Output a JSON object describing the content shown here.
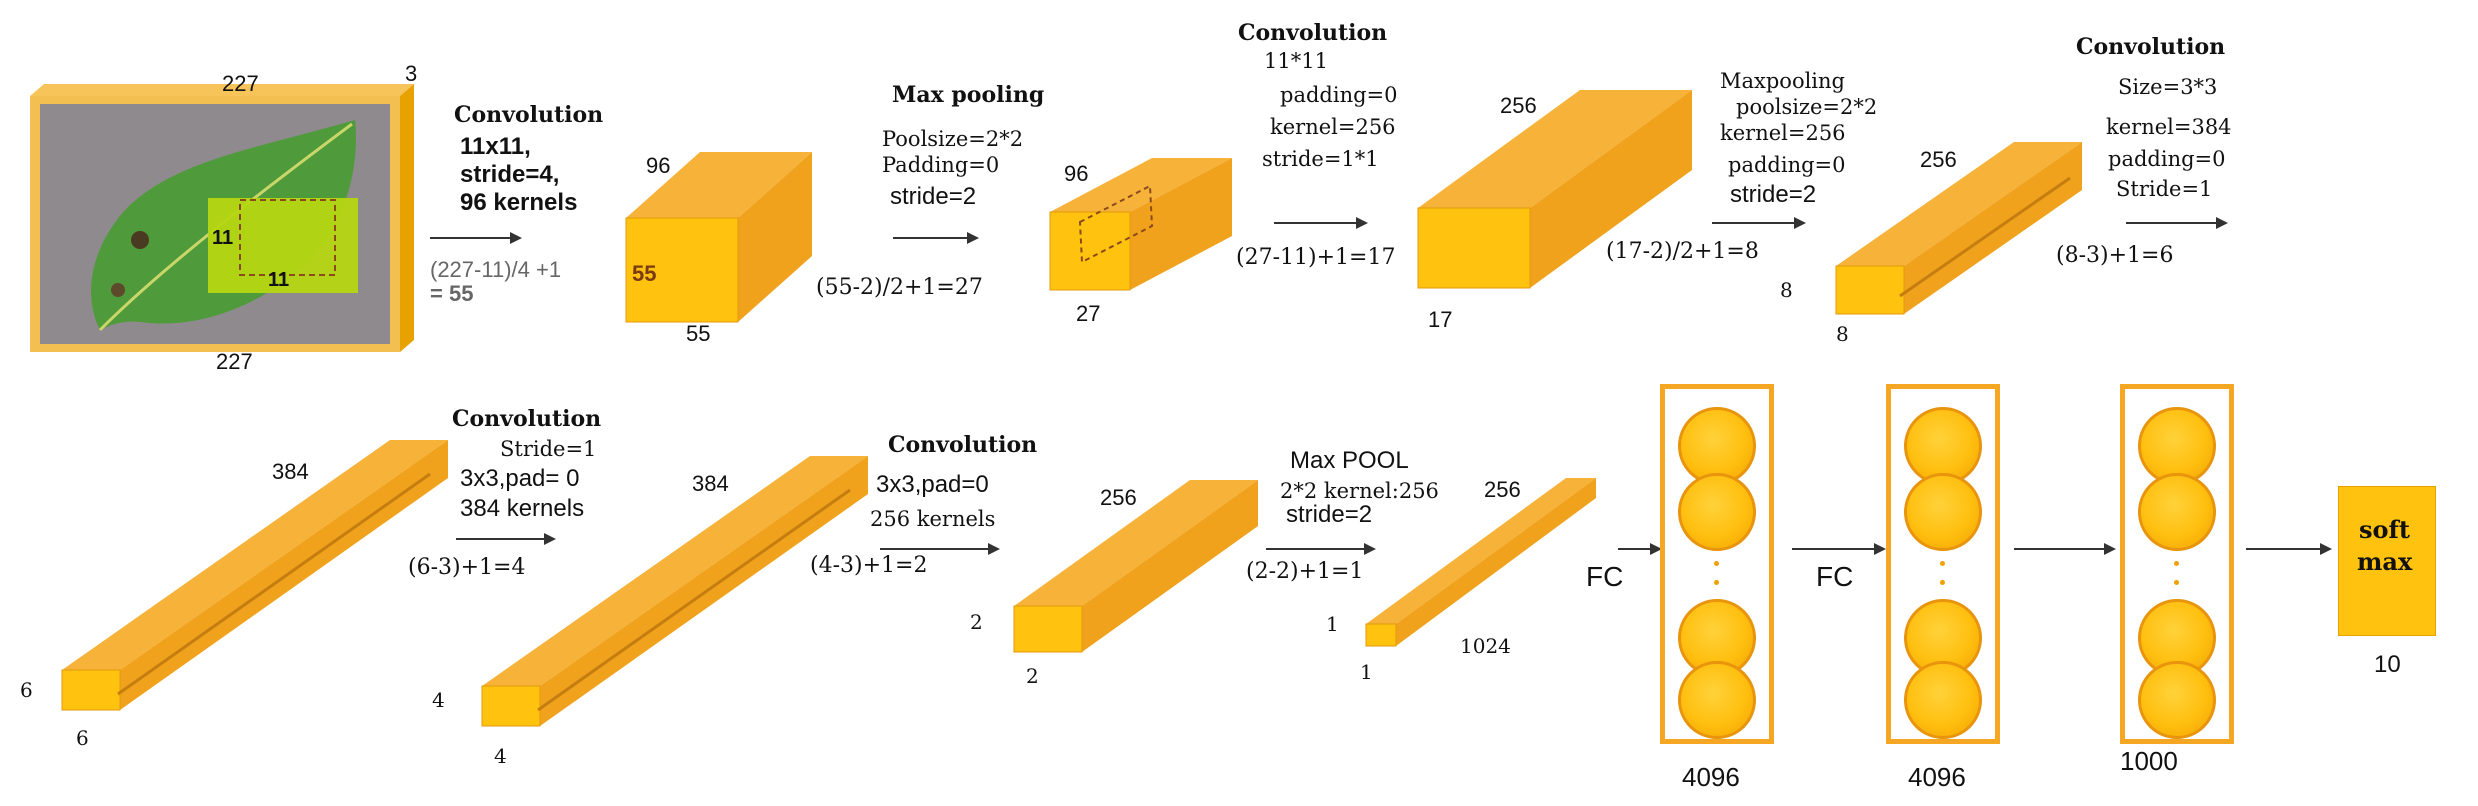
{
  "input": {
    "size_top": "227",
    "depth": "3",
    "size_bottom": "227",
    "filter_h": "11",
    "filter_w": "11"
  },
  "conv1": {
    "title": "Convolution",
    "line1": "11x11,",
    "line2": "stride=4,",
    "line3": "96 kernels",
    "formula1": "(227-11)/4 +1",
    "formula2": "= 55"
  },
  "block1": {
    "depth": "96",
    "front": "55",
    "bottom": "55"
  },
  "pool1": {
    "title": "Max pooling",
    "line1": "Poolsize=2*2",
    "line2": "Padding=0",
    "line3": "stride=2",
    "formula": "(55-2)/2+1=27"
  },
  "block2": {
    "depth": "96",
    "bottom": "27"
  },
  "conv2": {
    "title": "Convolution",
    "line1": "11*11",
    "line2": "padding=0",
    "line3": "kernel=256",
    "line4": "stride=1*1",
    "formula": "(27-11)+1=17"
  },
  "block3": {
    "depth": "256",
    "bottom": "17"
  },
  "pool2": {
    "title": "Maxpooling",
    "line1": "poolsize=2*2",
    "line2": "kernel=256",
    "line3": "padding=0",
    "line4": "stride=2",
    "formula": "(17-2)/2+1=8"
  },
  "block4": {
    "depth": "256",
    "side": "8",
    "bottom": "8"
  },
  "conv3": {
    "title": "Convolution",
    "line1": "Size=3*3",
    "line2": "kernel=384",
    "line3": "padding=0",
    "line4": "Stride=1",
    "formula": "(8-3)+1=6"
  },
  "block5": {
    "depth": "384",
    "side": "6",
    "bottom": "6"
  },
  "conv4": {
    "title": "Convolution",
    "line1": "Stride=1",
    "line2": "3x3,pad= 0",
    "line3": "384 kernels",
    "formula": "(6-3)+1=4"
  },
  "block6": {
    "depth": "384",
    "side": "4",
    "bottom": "4"
  },
  "conv5": {
    "title": "Convolution",
    "line1": "3x3,pad=0",
    "line2": "256 kernels",
    "formula": "(4-3)+1=2"
  },
  "block7": {
    "depth": "256",
    "side": "2",
    "bottom": "2"
  },
  "pool3": {
    "title": "Max POOL",
    "line1": "2*2  kernel:256",
    "line2": "stride=2",
    "formula": "(2-2)+1=1"
  },
  "block8": {
    "depth": "256",
    "side": "1",
    "bottom": "1",
    "length": "1024"
  },
  "fc": {
    "label1": "FC",
    "label2": "FC"
  },
  "dense": {
    "count1": "4096",
    "count2": "4096",
    "count3": "1000"
  },
  "softmax": {
    "line1": "soft",
    "line2": "max",
    "count": "10"
  },
  "colors": {
    "block_face": "#ffc20e",
    "block_side": "#f0a21c",
    "block_top": "#f7b23a",
    "fc_border": "#f5a623",
    "node_fill": "#ffbf0f"
  }
}
